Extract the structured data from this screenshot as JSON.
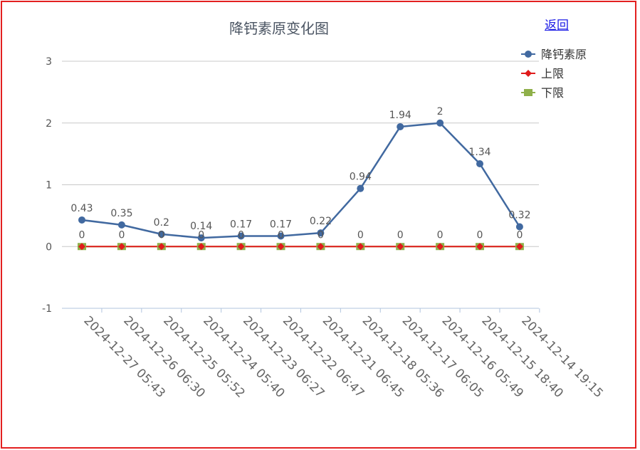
{
  "back_link": "返回",
  "chart_data": {
    "type": "line",
    "title": "降钙素原变化图",
    "categories": [
      "2024-12-27 05:43",
      "2024-12-26 06:30",
      "2024-12-25 05:52",
      "2024-12-24 05:40",
      "2024-12-23 06:27",
      "2024-12-22 06:47",
      "2024-12-21 06:45",
      "2024-12-18 05:36",
      "2024-12-17 06:05",
      "2024-12-16 05:49",
      "2024-12-15 18:40",
      "2024-12-14 19:15"
    ],
    "ylim": [
      -1,
      3
    ],
    "yticks": [
      -1,
      0,
      1,
      2,
      3
    ],
    "grid": true,
    "legend": "top-right",
    "series": [
      {
        "name": "降钙素原",
        "color": "#4169a0",
        "marker": "circle",
        "values": [
          0.43,
          0.35,
          0.2,
          0.14,
          0.17,
          0.17,
          0.22,
          0.94,
          1.94,
          2,
          1.34,
          0.32
        ],
        "labels": [
          "0.43",
          "0.35",
          "0.2",
          "0.14",
          "0.17",
          "0.17",
          "0.22",
          "0.94",
          "1.94",
          "2",
          "1.34",
          "0.32"
        ]
      },
      {
        "name": "上限",
        "color": "#e01b1b",
        "marker": "diamond",
        "values": [
          0,
          0,
          0,
          0,
          0,
          0,
          0,
          0,
          0,
          0,
          0,
          0
        ],
        "labels": [
          "0",
          "0",
          "0",
          "0",
          "0",
          "0",
          "0",
          "0",
          "0",
          "0",
          "0",
          "0"
        ]
      },
      {
        "name": "下限",
        "color": "#8fb04a",
        "marker": "square",
        "values": [
          0,
          0,
          0,
          0,
          0,
          0,
          0,
          0,
          0,
          0,
          0,
          0
        ],
        "labels": []
      }
    ]
  }
}
